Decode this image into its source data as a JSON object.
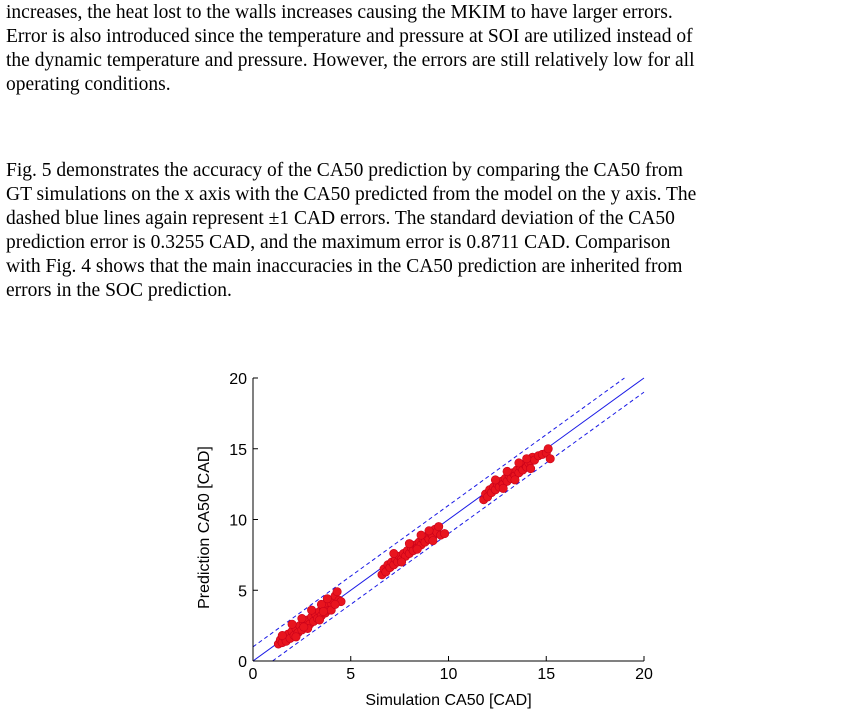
{
  "paragraphs": [
    {
      "lines": [
        "increases, the heat lost to the walls increases causing the MKIM to have larger errors.",
        "Error is also introduced since the temperature and pressure at SOI are utilized instead of",
        "the dynamic temperature and pressure. However, the errors are still relatively low for all",
        "operating conditions."
      ]
    },
    {
      "lines": [
        "Fig. 5 demonstrates the accuracy of the CA50 prediction by comparing the CA50 from",
        "GT simulations on the x axis with the CA50 predicted from the  model on the y axis. The",
        "dashed blue lines again represent ±1 CAD errors. The standard deviation of the CA50",
        "prediction error is 0.3255 CAD, and the maximum error is 0.8711 CAD. Comparison",
        "with Fig. 4 shows that the main inaccuracies in the CA50 prediction are inherited from",
        "errors in the SOC prediction."
      ]
    }
  ],
  "chart_data": {
    "type": "scatter",
    "title": "",
    "xlabel": "Simulation CA50 [CAD]",
    "ylabel": "Prediction CA50 [CAD]",
    "xlim": [
      0,
      20
    ],
    "ylim": [
      0,
      20
    ],
    "xticks": [
      0,
      5,
      10,
      15,
      20
    ],
    "yticks": [
      0,
      5,
      10,
      15,
      20
    ],
    "grid": false,
    "point_color": "#e8141e",
    "point_edge_color": "#c8001a",
    "reference_lines": [
      {
        "name": "y = x",
        "offset": 0,
        "style": "solid",
        "color": "#1a1ae6"
      },
      {
        "name": "+1 CAD",
        "offset": 1,
        "style": "dashed",
        "color": "#1a1ae6"
      },
      {
        "name": "-1 CAD",
        "offset": -1,
        "style": "dashed",
        "color": "#1a1ae6"
      }
    ],
    "series": [
      {
        "points": [
          [
            1.3,
            1.2
          ],
          [
            1.4,
            1.5
          ],
          [
            1.5,
            1.3
          ],
          [
            1.6,
            1.7
          ],
          [
            1.7,
            1.4
          ],
          [
            1.8,
            1.9
          ],
          [
            1.9,
            1.6
          ],
          [
            2.0,
            2.1
          ],
          [
            2.1,
            1.8
          ],
          [
            2.2,
            2.3
          ],
          [
            2.3,
            2.0
          ],
          [
            2.4,
            2.5
          ],
          [
            2.5,
            2.2
          ],
          [
            2.6,
            2.7
          ],
          [
            2.7,
            2.4
          ],
          [
            2.8,
            2.9
          ],
          [
            2.9,
            2.6
          ],
          [
            3.0,
            3.1
          ],
          [
            3.1,
            2.8
          ],
          [
            3.2,
            3.3
          ],
          [
            3.3,
            3.0
          ],
          [
            3.4,
            3.5
          ],
          [
            3.5,
            3.2
          ],
          [
            3.6,
            3.7
          ],
          [
            3.7,
            3.4
          ],
          [
            3.8,
            3.9
          ],
          [
            3.9,
            3.6
          ],
          [
            4.0,
            4.1
          ],
          [
            4.1,
            4.3
          ],
          [
            4.2,
            4.6
          ],
          [
            4.3,
            4.9
          ],
          [
            4.4,
            4.3
          ],
          [
            2.0,
            2.6
          ],
          [
            2.5,
            3.0
          ],
          [
            3.0,
            3.6
          ],
          [
            3.5,
            4.0
          ],
          [
            3.8,
            4.4
          ],
          [
            2.2,
            1.7
          ],
          [
            2.8,
            2.3
          ],
          [
            3.4,
            2.9
          ],
          [
            4.0,
            3.6
          ],
          [
            4.5,
            4.2
          ],
          [
            1.5,
            1.8
          ],
          [
            2.6,
            2.4
          ],
          [
            3.6,
            3.5
          ],
          [
            4.2,
            4.0
          ],
          [
            6.6,
            6.1
          ],
          [
            6.7,
            6.5
          ],
          [
            6.8,
            6.3
          ],
          [
            6.9,
            6.8
          ],
          [
            7.0,
            6.6
          ],
          [
            7.1,
            7.0
          ],
          [
            7.2,
            6.8
          ],
          [
            7.3,
            7.2
          ],
          [
            7.4,
            7.0
          ],
          [
            7.5,
            7.4
          ],
          [
            7.6,
            7.2
          ],
          [
            7.7,
            7.6
          ],
          [
            7.8,
            7.4
          ],
          [
            7.9,
            7.8
          ],
          [
            8.0,
            7.6
          ],
          [
            8.1,
            8.0
          ],
          [
            8.2,
            7.8
          ],
          [
            8.3,
            8.2
          ],
          [
            8.4,
            8.0
          ],
          [
            8.5,
            8.4
          ],
          [
            8.6,
            8.2
          ],
          [
            8.7,
            8.6
          ],
          [
            8.8,
            8.4
          ],
          [
            8.9,
            8.8
          ],
          [
            9.0,
            8.6
          ],
          [
            9.1,
            9.0
          ],
          [
            9.2,
            8.8
          ],
          [
            9.3,
            9.3
          ],
          [
            9.4,
            9.1
          ],
          [
            9.5,
            9.5
          ],
          [
            9.6,
            8.9
          ],
          [
            9.8,
            9.0
          ],
          [
            7.2,
            7.6
          ],
          [
            8.0,
            8.3
          ],
          [
            8.6,
            8.9
          ],
          [
            9.0,
            9.2
          ],
          [
            7.6,
            7.0
          ],
          [
            8.4,
            7.9
          ],
          [
            9.2,
            8.5
          ],
          [
            11.8,
            11.4
          ],
          [
            11.9,
            11.8
          ],
          [
            12.0,
            11.6
          ],
          [
            12.1,
            12.1
          ],
          [
            12.2,
            11.9
          ],
          [
            12.3,
            12.3
          ],
          [
            12.4,
            12.1
          ],
          [
            12.5,
            12.5
          ],
          [
            12.6,
            12.3
          ],
          [
            12.7,
            12.7
          ],
          [
            12.8,
            12.5
          ],
          [
            12.9,
            12.9
          ],
          [
            13.0,
            12.7
          ],
          [
            13.1,
            13.1
          ],
          [
            13.2,
            12.9
          ],
          [
            13.3,
            13.3
          ],
          [
            13.4,
            13.1
          ],
          [
            13.5,
            13.5
          ],
          [
            13.6,
            13.3
          ],
          [
            13.7,
            13.7
          ],
          [
            13.8,
            13.5
          ],
          [
            13.9,
            13.9
          ],
          [
            14.0,
            13.7
          ],
          [
            14.1,
            14.0
          ],
          [
            14.2,
            14.1
          ],
          [
            14.3,
            14.4
          ],
          [
            14.4,
            14.2
          ],
          [
            14.6,
            14.5
          ],
          [
            14.8,
            14.6
          ],
          [
            15.0,
            14.7
          ],
          [
            15.1,
            15.0
          ],
          [
            15.2,
            14.3
          ],
          [
            12.4,
            12.8
          ],
          [
            13.0,
            13.4
          ],
          [
            13.6,
            14.0
          ],
          [
            14.0,
            14.3
          ],
          [
            12.8,
            12.2
          ],
          [
            13.4,
            12.8
          ],
          [
            14.2,
            13.6
          ]
        ]
      }
    ]
  }
}
